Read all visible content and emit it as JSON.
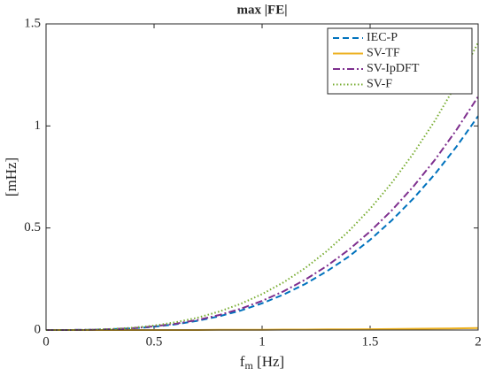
{
  "chart_data": {
    "type": "line",
    "title": "max |FE|",
    "xlabel": [
      "f",
      "m",
      " [Hz]"
    ],
    "ylabel": "[mHz]",
    "x": [
      0,
      0.1,
      0.2,
      0.3,
      0.4,
      0.5,
      0.6,
      0.7,
      0.8,
      0.9,
      1,
      1.1,
      1.2,
      1.3,
      1.4,
      1.5,
      1.6,
      1.7,
      1.8,
      1.9,
      2
    ],
    "series": [
      {
        "name": "IEC-P",
        "color": "#0072bd",
        "style": "dashed",
        "values": [
          0,
          0,
          0.001,
          0.004,
          0.008,
          0.016,
          0.028,
          0.045,
          0.067,
          0.095,
          0.131,
          0.174,
          0.226,
          0.288,
          0.359,
          0.442,
          0.537,
          0.644,
          0.764,
          0.899,
          1.048
        ]
      },
      {
        "name": "SV-TF",
        "color": "#edb120",
        "style": "solid",
        "values": [
          0,
          0,
          0,
          0,
          0,
          0,
          0,
          0,
          0.001,
          0.001,
          0.001,
          0.002,
          0.002,
          0.003,
          0.003,
          0.004,
          0.005,
          0.006,
          0.007,
          0.008,
          0.01
        ]
      },
      {
        "name": "SV-IpDFT",
        "color": "#7e2f8e",
        "style": "dashdot",
        "values": [
          0,
          0,
          0.001,
          0.004,
          0.009,
          0.018,
          0.031,
          0.049,
          0.073,
          0.104,
          0.143,
          0.19,
          0.247,
          0.314,
          0.392,
          0.483,
          0.586,
          0.703,
          0.834,
          0.981,
          1.144
        ]
      },
      {
        "name": "SV-F",
        "color": "#77ac30",
        "style": "dotted",
        "values": [
          0,
          0,
          0.001,
          0.005,
          0.011,
          0.022,
          0.038,
          0.06,
          0.09,
          0.128,
          0.176,
          0.234,
          0.304,
          0.387,
          0.483,
          0.594,
          0.721,
          0.865,
          1.026,
          1.207,
          1.408
        ]
      }
    ],
    "xlim": [
      0,
      2
    ],
    "xticks": [
      0,
      0.5,
      1,
      1.5,
      2
    ],
    "ylim": [
      0,
      1.5
    ],
    "yticks": [
      0,
      0.5,
      1,
      1.5
    ],
    "grid": false,
    "legend": "top-right"
  }
}
